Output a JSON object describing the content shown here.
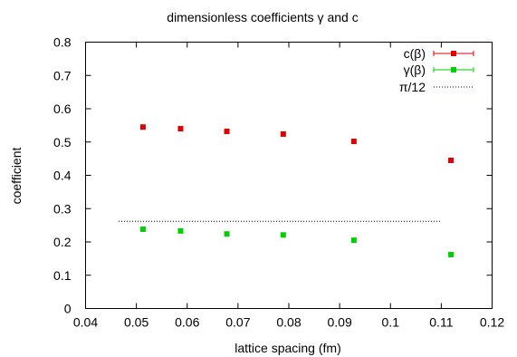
{
  "chart_data": {
    "type": "scatter",
    "title": "dimensionless coefficients γ and c",
    "xlabel": "lattice spacing (fm)",
    "ylabel": "coefficient",
    "xlim": [
      0.04,
      0.12
    ],
    "ylim": [
      0,
      0.8
    ],
    "xticks": [
      "0.04",
      "0.05",
      "0.06",
      "0.07",
      "0.08",
      "0.09",
      "0.1",
      "0.11",
      "0.12"
    ],
    "yticks": [
      "0",
      "0.1",
      "0.2",
      "0.3",
      "0.4",
      "0.5",
      "0.6",
      "0.7",
      "0.8"
    ],
    "xtick_values": [
      0.04,
      0.05,
      0.06,
      0.07,
      0.08,
      0.09,
      0.1,
      0.11,
      0.12
    ],
    "ytick_values": [
      0,
      0.1,
      0.2,
      0.3,
      0.4,
      0.5,
      0.6,
      0.7,
      0.8
    ],
    "grid": false,
    "legend_position": "top-right",
    "series": [
      {
        "name": "c(β)",
        "color": "#e00000",
        "marker": "square",
        "x": [
          0.0513,
          0.0587,
          0.0678,
          0.0789,
          0.0928,
          0.1119
        ],
        "y": [
          0.545,
          0.54,
          0.532,
          0.524,
          0.502,
          0.445
        ]
      },
      {
        "name": "γ(β)",
        "color": "#00d000",
        "marker": "square",
        "x": [
          0.0513,
          0.0587,
          0.0678,
          0.0789,
          0.0928,
          0.1119
        ],
        "y": [
          0.238,
          0.233,
          0.224,
          0.221,
          0.205,
          0.162
        ]
      },
      {
        "name": "π/12",
        "color": "#000080",
        "style": "dotted-line",
        "x": [
          0.0465,
          0.1099
        ],
        "y": [
          0.2618,
          0.2618
        ]
      }
    ]
  }
}
